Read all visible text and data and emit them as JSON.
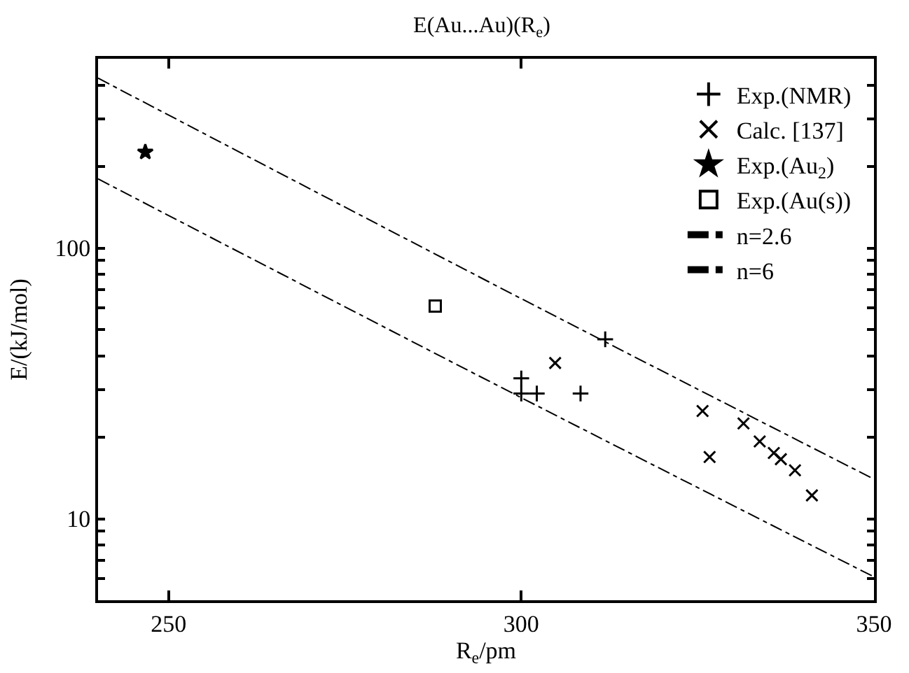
{
  "chart_data": {
    "type": "scatter",
    "title": "E(Au...Au)(R$_{e}$)",
    "xlabel": "R$_{e}$/pm",
    "ylabel": "E/(kJ/mol)",
    "log": "y",
    "legend": "top right",
    "xlim": [
      240,
      350
    ],
    "xticks": [
      250,
      300,
      350
    ],
    "ylim": [
      5,
      500
    ],
    "yticks": [
      {
        "value": 6,
        "label": null
      },
      {
        "value": 7,
        "label": null
      },
      {
        "value": 8,
        "label": null
      },
      {
        "value": 9,
        "label": null
      },
      10,
      {
        "value": 20,
        "label": null
      },
      {
        "value": 30,
        "label": null
      },
      {
        "value": 40,
        "label": null
      },
      {
        "value": 50,
        "label": null
      },
      {
        "value": 60,
        "label": null
      },
      {
        "value": 70,
        "label": null
      },
      {
        "value": 80,
        "label": null
      },
      {
        "value": 90,
        "label": null
      },
      100,
      {
        "value": 200,
        "label": null
      },
      {
        "value": 300,
        "label": null
      },
      {
        "value": 400,
        "label": null
      }
    ],
    "series": [
      {
        "name": "Exp.(NMR)",
        "marker": "cross",
        "color": "#000000",
        "x": [
          300,
          300,
          302.2,
          308.4,
          311.9
        ],
        "values": [
          33,
          29,
          29,
          29,
          46
        ]
      },
      {
        "name": "Calc. [137]",
        "marker": "x",
        "color": "#000000",
        "x": [
          304.8,
          325.7,
          326.7,
          331.5,
          333.8,
          335.8,
          336.8,
          338.8,
          341.2
        ],
        "values": [
          37.6,
          25,
          16.9,
          22.5,
          19.3,
          17.5,
          16.6,
          15.1,
          12.2
        ]
      },
      {
        "name": "Exp.(Au$_{2}$)",
        "marker": "star",
        "color": "#000000",
        "x": [
          246.7
        ],
        "values": [
          226
        ]
      },
      {
        "name": "Exp.(Au(s))",
        "marker": "square",
        "color": "#000000",
        "x": [
          287.8
        ],
        "values": [
          61
        ]
      },
      {
        "name": "n=2.6",
        "type": "line",
        "line_style": "dashdot",
        "marker": "none",
        "color": "#000000",
        "x": [
          240,
          300,
          350
        ],
        "values": [
          424,
          65,
          14
        ]
      },
      {
        "name": "n=6",
        "type": "line",
        "line_style": "dashdot",
        "marker": "none",
        "color": "#000000",
        "x": [
          240,
          300,
          350
        ],
        "values": [
          180,
          28,
          6.1
        ]
      }
    ]
  }
}
